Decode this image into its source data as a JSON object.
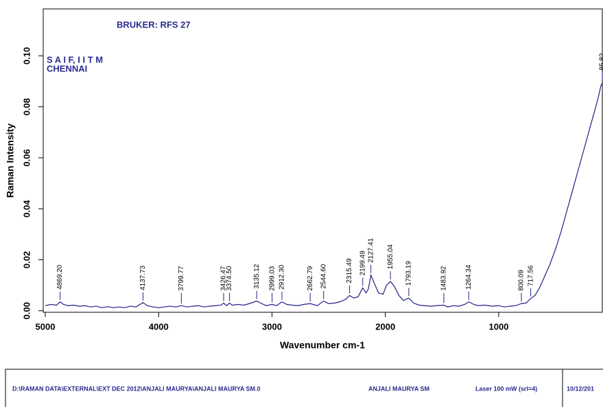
{
  "chart_data": {
    "type": "line",
    "header": "BRUKER: RFS 27",
    "org": "S A I F, I I T M",
    "city": "CHENNAI",
    "x_label": "Wavenumber cm-1",
    "y_label": "Raman Intensity",
    "xlim": [
      5018,
      80
    ],
    "ylim": [
      -0.0006,
      0.1184
    ],
    "xticks": [
      5000,
      4000,
      3000,
      2000,
      1000
    ],
    "yticks": [
      {
        "value": 0,
        "label": "0.00"
      },
      {
        "value": 0.02,
        "label": "0.02"
      },
      {
        "value": 0.04,
        "label": "0.04"
      },
      {
        "value": 0.06,
        "label": "0.06"
      },
      {
        "value": 0.08,
        "label": "0.08"
      },
      {
        "value": 0.1,
        "label": "0.10"
      }
    ],
    "x": [
      5000,
      4950,
      4900,
      4869.2,
      4840,
      4800,
      4750,
      4700,
      4650,
      4600,
      4550,
      4500,
      4450,
      4400,
      4350,
      4300,
      4250,
      4200,
      4137.73,
      4100,
      4050,
      4000,
      3950,
      3900,
      3850,
      3799.77,
      3750,
      3700,
      3650,
      3600,
      3550,
      3500,
      3450,
      3426.47,
      3400,
      3374.5,
      3350,
      3300,
      3250,
      3200,
      3135.12,
      3100,
      3050,
      2999.03,
      2960,
      2912.3,
      2870,
      2820,
      2770,
      2720,
      2662.79,
      2600,
      2544.6,
      2500,
      2450,
      2400,
      2350,
      2315.49,
      2280,
      2240,
      2199.49,
      2170,
      2150,
      2127.41,
      2100,
      2060,
      2020,
      1990,
      1955.04,
      1920,
      1880,
      1840,
      1793.19,
      1750,
      1700,
      1650,
      1600,
      1550,
      1483.92,
      1450,
      1400,
      1350,
      1300,
      1264.34,
      1220,
      1180,
      1120,
      1060,
      1000,
      950,
      900,
      850,
      800.09,
      760,
      717.56,
      680,
      640,
      600,
      550,
      500,
      450,
      400,
      350,
      300,
      250,
      200,
      150,
      120,
      100,
      85.82
    ],
    "series": [
      {
        "color": "#1f1f8a",
        "values": [
          0.002,
          0.0025,
          0.0022,
          0.0035,
          0.0025,
          0.002,
          0.0022,
          0.0018,
          0.002,
          0.0015,
          0.0018,
          0.0012,
          0.0016,
          0.0012,
          0.0015,
          0.0012,
          0.0018,
          0.0015,
          0.0032,
          0.002,
          0.0015,
          0.0012,
          0.0015,
          0.0018,
          0.0015,
          0.002,
          0.0015,
          0.0018,
          0.002,
          0.0015,
          0.0018,
          0.002,
          0.0022,
          0.003,
          0.002,
          0.003,
          0.0022,
          0.0025,
          0.0022,
          0.0028,
          0.0038,
          0.003,
          0.002,
          0.0025,
          0.002,
          0.0035,
          0.0025,
          0.0022,
          0.002,
          0.0025,
          0.0028,
          0.002,
          0.0038,
          0.0028,
          0.003,
          0.0035,
          0.0045,
          0.006,
          0.005,
          0.0055,
          0.009,
          0.007,
          0.0085,
          0.014,
          0.011,
          0.007,
          0.0065,
          0.01,
          0.0115,
          0.0095,
          0.006,
          0.004,
          0.005,
          0.003,
          0.0022,
          0.002,
          0.0018,
          0.002,
          0.0022,
          0.0015,
          0.002,
          0.0018,
          0.0025,
          0.0035,
          0.0025,
          0.002,
          0.0022,
          0.0018,
          0.002,
          0.0015,
          0.0018,
          0.002,
          0.0028,
          0.003,
          0.0048,
          0.006,
          0.009,
          0.013,
          0.018,
          0.024,
          0.031,
          0.039,
          0.047,
          0.055,
          0.063,
          0.071,
          0.079,
          0.084,
          0.088,
          0.0895
        ]
      }
    ],
    "peaks": [
      {
        "value": 4869.2,
        "label": "4869.20"
      },
      {
        "value": 4137.73,
        "label": "4137.73"
      },
      {
        "value": 3799.77,
        "label": "3799.77"
      },
      {
        "value": 3426.47,
        "label": "3426.47"
      },
      {
        "value": 3374.5,
        "label": "3374.50"
      },
      {
        "value": 3135.12,
        "label": "3135.12"
      },
      {
        "value": 2999.03,
        "label": "2999.03"
      },
      {
        "value": 2912.3,
        "label": "2912.30"
      },
      {
        "value": 2662.79,
        "label": "2662.79"
      },
      {
        "value": 2544.6,
        "label": "2544.60"
      },
      {
        "value": 2315.49,
        "label": "2315.49"
      },
      {
        "value": 2199.49,
        "label": "2199.49"
      },
      {
        "value": 2127.41,
        "label": "2127.41"
      },
      {
        "value": 1955.04,
        "label": "1955.04"
      },
      {
        "value": 1793.19,
        "label": "1793.19"
      },
      {
        "value": 1483.92,
        "label": "1483.92"
      },
      {
        "value": 1264.34,
        "label": "1264.34"
      },
      {
        "value": 800.09,
        "label": "800.09"
      },
      {
        "value": 717.56,
        "label": "717.56"
      },
      {
        "value": 85.82,
        "label": "85.82"
      }
    ],
    "footer": [
      "D:\\RAMAN DATA\\EXTERNAL\\EXT DEC 2012\\ANJALI MAURYA\\ANJALI MAURYA SM.0",
      "ANJALI MAURYA SM",
      "Laser 100 mW (srl=4)",
      "10/12/201"
    ]
  }
}
